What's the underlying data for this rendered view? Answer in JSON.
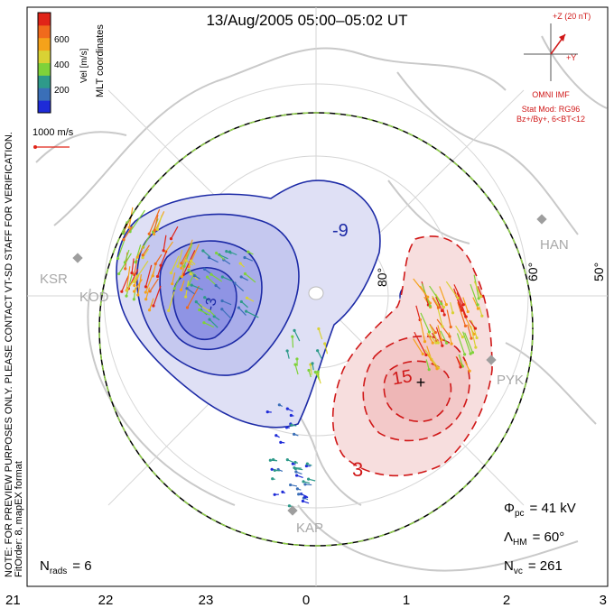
{
  "title": "13/Aug/2005 05:00–05:02 UT",
  "side_note": "NOTE: FOR PREVIEW PURPOSES ONLY. PLEASE CONTACT VT-SD STAFF FOR VERIFICATION.",
  "fit_order": "FitOrder: 8, mapEX format",
  "coord_label": "MLT coordinates",
  "colorbar": {
    "label": "Vel [m/s]",
    "ticks": [
      "600",
      "400",
      "200"
    ],
    "colors": [
      "#1e2bd8",
      "#3a6fb8",
      "#2e9a8a",
      "#7fd23a",
      "#d9d234",
      "#f5a21a",
      "#f06a1c",
      "#e02418"
    ]
  },
  "ref_vector": {
    "label": "1000 m/s",
    "color": "#e02418"
  },
  "imf": {
    "scale_label": "+Z (20 nT)",
    "y_label": "+Y",
    "source": "OMNI IMF",
    "stat_model": "Stat Mod: RG96",
    "condition": "Bz+/By+, 6<BT<12",
    "color": "#d01818"
  },
  "stations": [
    "KSR",
    "KOD",
    "HAN",
    "PYK",
    "KAP"
  ],
  "lat_labels": [
    "80°",
    "60°",
    "50°"
  ],
  "contour_labels": {
    "neg": "-9",
    "neg2": "-3",
    "pos": "15",
    "pos2": "3"
  },
  "mlt_ticks": [
    "21",
    "22",
    "23",
    "0",
    "1",
    "2",
    "3"
  ],
  "stats": {
    "phi_pc": {
      "label": "Φ",
      "sub": "pc",
      "value": "= 41 kV"
    },
    "lambda_hm": {
      "label": "Λ",
      "sub": "HM",
      "value": "= 60°"
    },
    "n_vc": {
      "label": "N",
      "sub": "vc",
      "value": "= 261"
    },
    "n_rads": {
      "label": "N",
      "sub": "rads",
      "value": "= 6"
    }
  },
  "chart_data": {
    "type": "heatmap",
    "title": "13/Aug/2005 05:00–05:02 UT",
    "x_axis": "MLT",
    "mlt_ticks": [
      21,
      22,
      23,
      0,
      1,
      2,
      3
    ],
    "cross_polar_cap_potential_kV": 41,
    "heppner_maynard_boundary_deg": 60,
    "vector_count": 261,
    "radar_count": 6,
    "potential_contour_labels_kV": [
      -9,
      -3,
      15,
      3
    ],
    "velocity_scale_ms": [
      200,
      400,
      600
    ],
    "reference_vector_ms": 1000
  }
}
